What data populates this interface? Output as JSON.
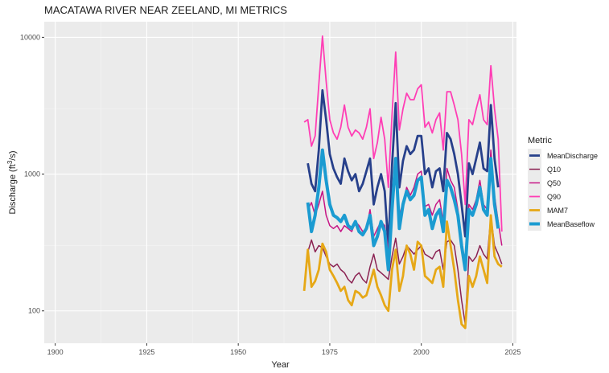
{
  "chart_data": {
    "type": "line",
    "title": "MACATAWA RIVER NEAR ZEELAND, MI  METRICS",
    "xlabel": "Year",
    "ylabel": "Discharge (ft³/s)",
    "ylabel_parts": {
      "pre": "Discharge (ft",
      "sup": "3",
      "post": "/s)"
    },
    "xlim": [
      1897,
      2026
    ],
    "ylim": [
      58,
      13000
    ],
    "yscale": "log10",
    "x_ticks": [
      1900,
      1925,
      1950,
      1975,
      2000,
      2025
    ],
    "x_tick_labels": [
      "1900",
      "1925",
      "1950",
      "1975",
      "2000",
      "2025"
    ],
    "y_ticks": [
      100,
      1000,
      10000
    ],
    "y_tick_labels": [
      "100",
      "1000",
      "10000"
    ],
    "grid": true,
    "legend": {
      "title": "Metric",
      "position": "right"
    },
    "x": [
      1968,
      1969,
      1970,
      1971,
      1972,
      1973,
      1974,
      1975,
      1976,
      1977,
      1978,
      1979,
      1980,
      1981,
      1982,
      1983,
      1984,
      1985,
      1986,
      1987,
      1988,
      1989,
      1990,
      1991,
      1992,
      1993,
      1994,
      1995,
      1996,
      1997,
      1998,
      1999,
      2000,
      2001,
      2002,
      2003,
      2004,
      2005,
      2006,
      2007,
      2008,
      2009,
      2010,
      2011,
      2012,
      2013,
      2014,
      2015,
      2016,
      2017,
      2018,
      2019,
      2020,
      2021,
      2022
    ],
    "series": [
      {
        "name": "MeanDischarge",
        "color": "#27408b",
        "width": 2.8,
        "values": [
          null,
          1200,
          850,
          750,
          1500,
          4100,
          2500,
          1400,
          1100,
          950,
          850,
          1300,
          1050,
          900,
          1000,
          750,
          850,
          1050,
          1300,
          600,
          800,
          1000,
          750,
          300,
          1150,
          3300,
          800,
          1250,
          1600,
          1400,
          1500,
          1900,
          1900,
          1000,
          1100,
          800,
          1050,
          1100,
          750,
          2000,
          1800,
          1400,
          1000,
          600,
          350,
          1200,
          1000,
          1300,
          1700,
          1100,
          1050,
          3200,
          1300,
          800,
          null
        ]
      },
      {
        "name": "Q10",
        "color": "#8b2252",
        "width": 1.5,
        "values": [
          null,
          270,
          330,
          270,
          300,
          290,
          250,
          220,
          210,
          220,
          200,
          190,
          170,
          160,
          180,
          190,
          170,
          160,
          210,
          260,
          200,
          190,
          180,
          170,
          250,
          340,
          220,
          250,
          300,
          280,
          260,
          280,
          300,
          260,
          250,
          240,
          270,
          280,
          200,
          320,
          330,
          300,
          200,
          120,
          80,
          250,
          230,
          250,
          300,
          260,
          240,
          500,
          300,
          260,
          220
        ]
      },
      {
        "name": "Q50",
        "color": "#c71585",
        "width": 1.5,
        "values": [
          null,
          550,
          620,
          500,
          600,
          750,
          500,
          420,
          400,
          420,
          380,
          420,
          400,
          380,
          450,
          420,
          380,
          400,
          550,
          350,
          400,
          450,
          420,
          280,
          600,
          1200,
          500,
          620,
          800,
          700,
          800,
          1000,
          1050,
          580,
          600,
          500,
          600,
          650,
          450,
          1100,
          900,
          800,
          550,
          300,
          220,
          600,
          550,
          650,
          900,
          600,
          550,
          1500,
          700,
          450,
          300
        ]
      },
      {
        "name": "Q90",
        "color": "#ff3eb5",
        "width": 1.8,
        "values": [
          2400,
          2500,
          1600,
          1900,
          4500,
          10200,
          4800,
          2500,
          2000,
          1800,
          2200,
          3200,
          2200,
          1900,
          2100,
          2000,
          1800,
          2200,
          3000,
          1300,
          1700,
          2600,
          1800,
          800,
          2700,
          7800,
          2100,
          3000,
          3900,
          3500,
          3500,
          4200,
          4500,
          2200,
          2400,
          2000,
          2500,
          2800,
          1500,
          4000,
          4000,
          3200,
          2500,
          1400,
          600,
          2500,
          2300,
          3000,
          3800,
          2500,
          2300,
          6200,
          3000,
          1800,
          380
        ]
      },
      {
        "name": "MAM7",
        "color": "#e6a817",
        "width": 2.8,
        "values": [
          140,
          280,
          150,
          165,
          200,
          310,
          270,
          200,
          180,
          160,
          140,
          150,
          120,
          110,
          140,
          135,
          125,
          130,
          160,
          200,
          150,
          130,
          110,
          100,
          200,
          280,
          140,
          180,
          300,
          260,
          200,
          320,
          300,
          180,
          170,
          160,
          200,
          210,
          150,
          450,
          300,
          200,
          120,
          80,
          75,
          180,
          150,
          180,
          250,
          200,
          160,
          500,
          250,
          220,
          210
        ]
      },
      {
        "name": "MeanBaseflow",
        "color": "#1b9bd1",
        "width": 4,
        "values": [
          null,
          620,
          380,
          500,
          800,
          1500,
          900,
          600,
          500,
          480,
          450,
          500,
          420,
          400,
          450,
          380,
          360,
          400,
          500,
          300,
          350,
          450,
          380,
          200,
          550,
          1300,
          400,
          600,
          750,
          650,
          700,
          900,
          950,
          500,
          550,
          400,
          500,
          550,
          380,
          900,
          800,
          650,
          500,
          300,
          200,
          550,
          500,
          600,
          800,
          550,
          500,
          1300,
          600,
          400,
          null
        ]
      }
    ]
  }
}
